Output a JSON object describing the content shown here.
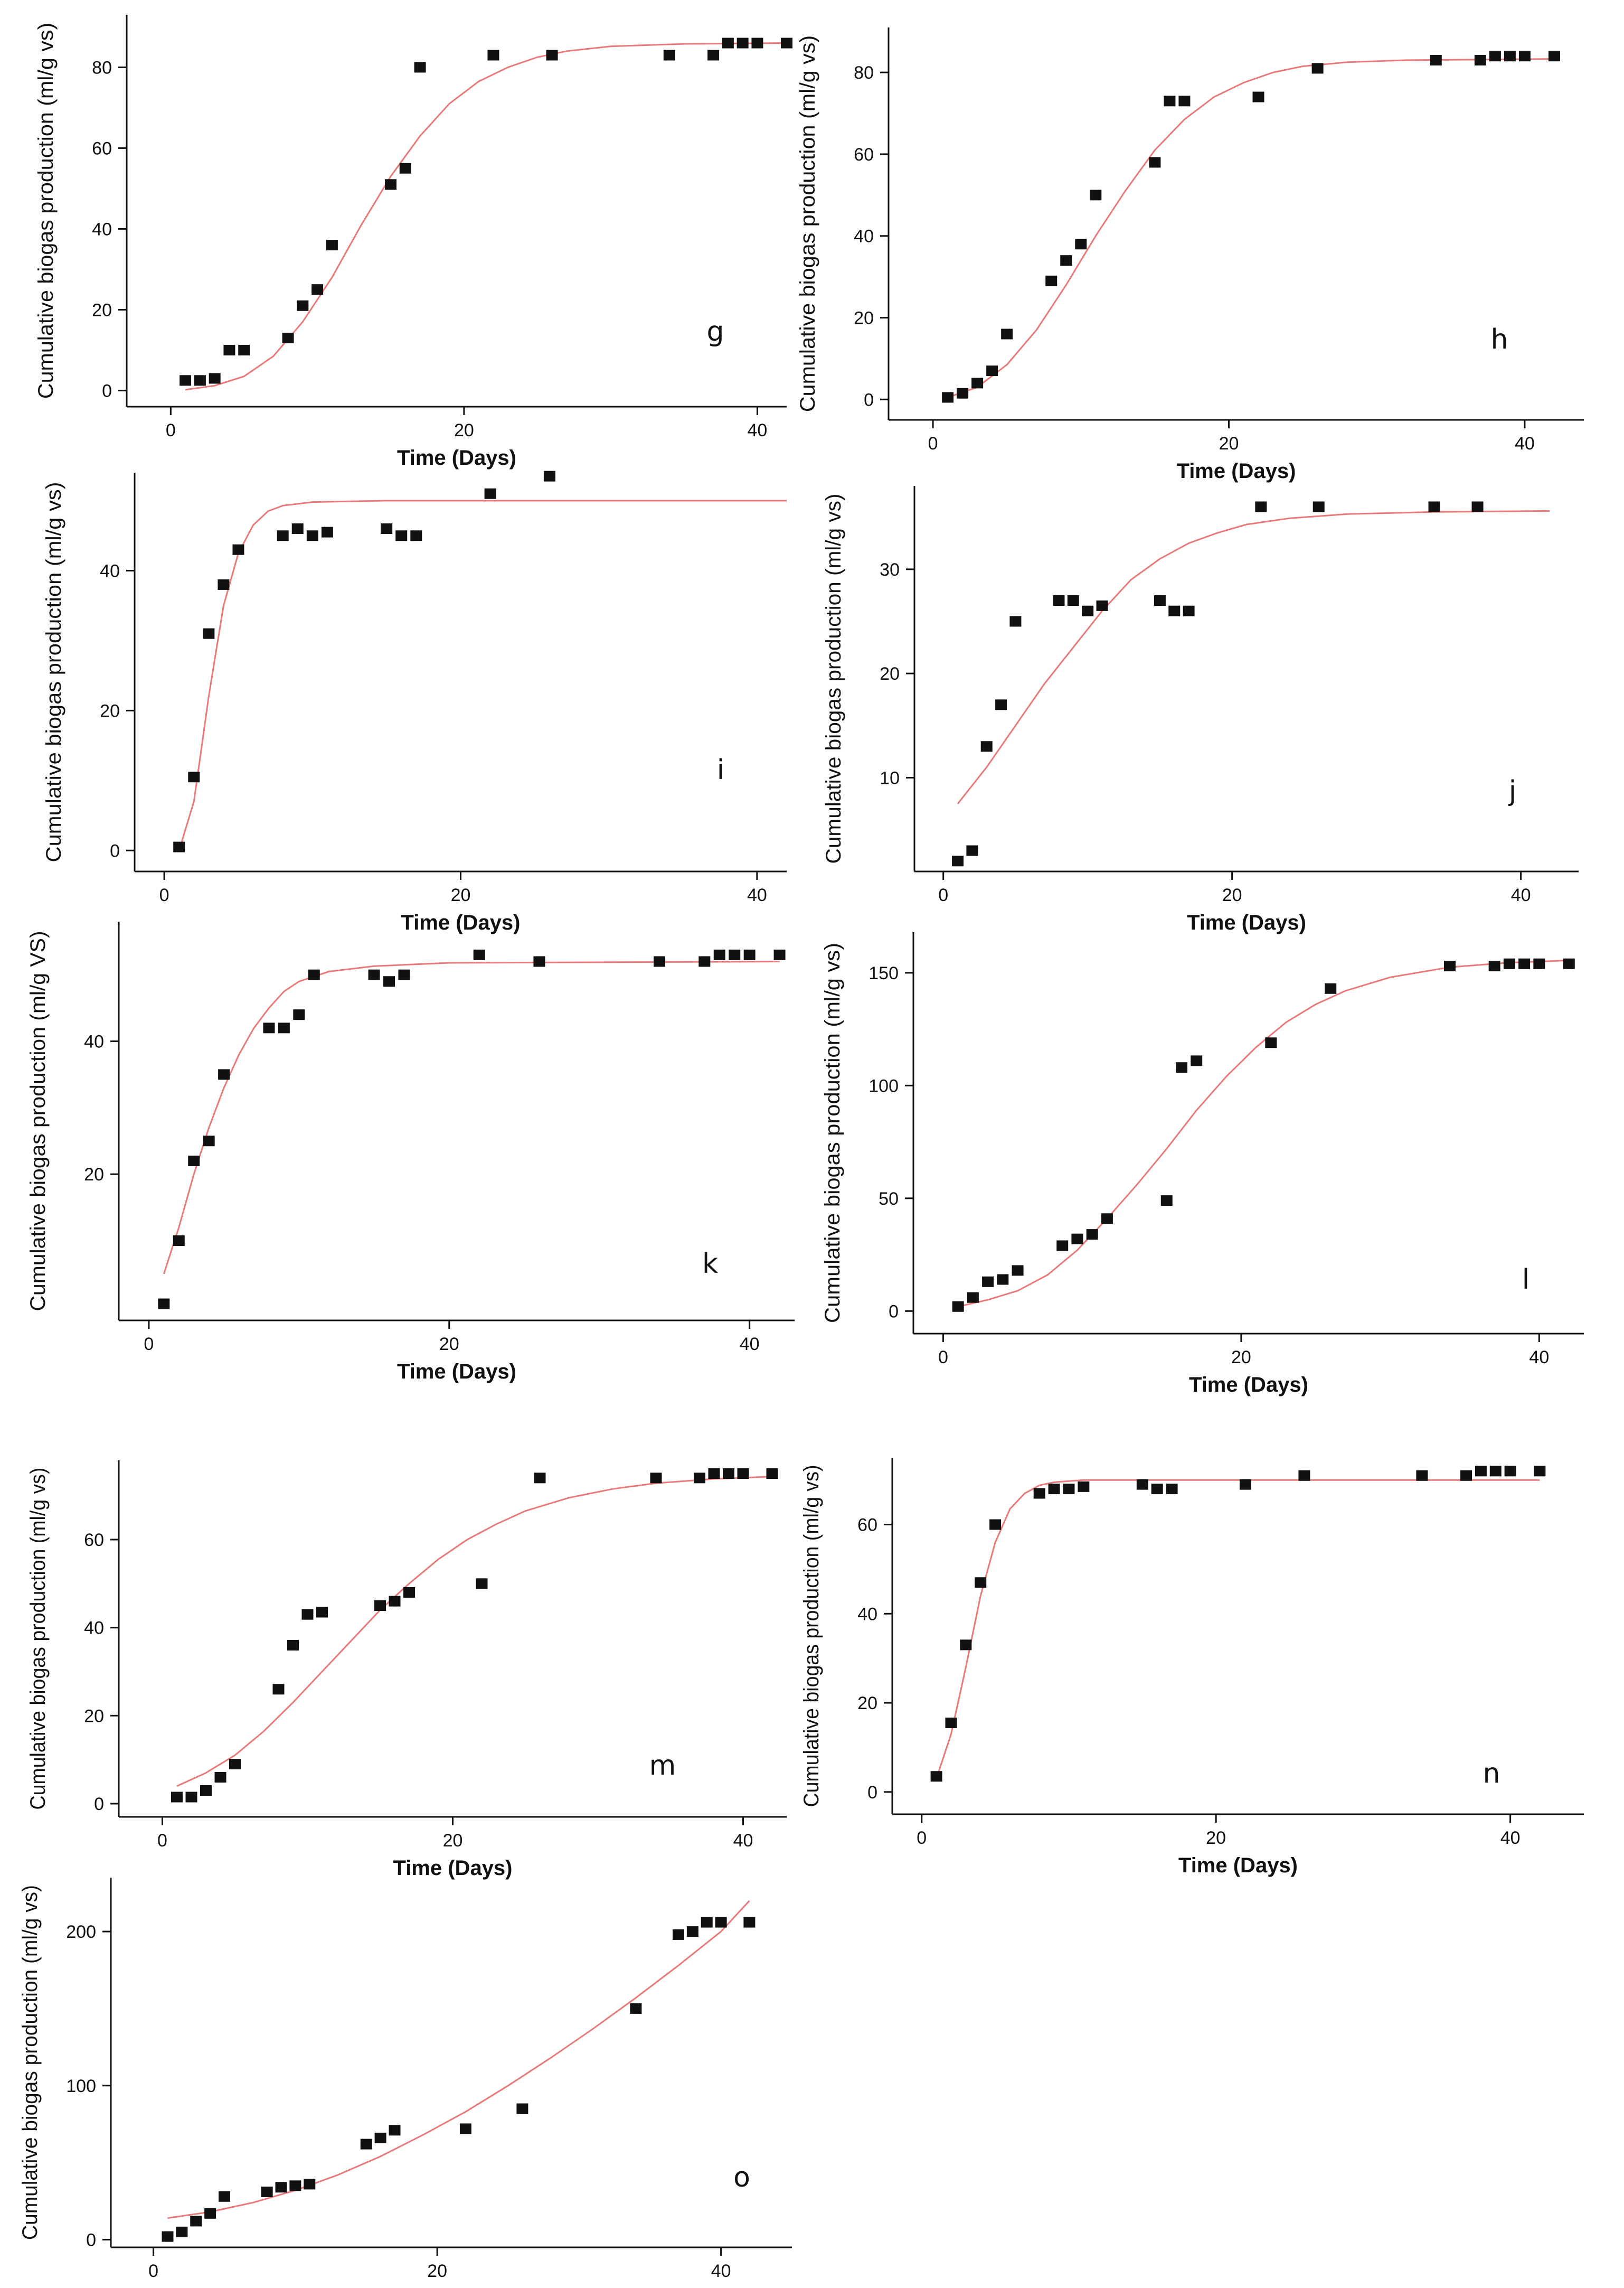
{
  "chart_data": [
    {
      "id": "g",
      "type": "scatter",
      "panel_label": "g",
      "xlabel": "Time (Days)",
      "ylabel": "Cumulative biogas production (ml/g vs)",
      "xlim": [
        -3,
        42
      ],
      "ylim": [
        -4,
        93
      ],
      "xticks": [
        0,
        20,
        40
      ],
      "yticks": [
        0,
        20,
        40,
        60,
        80
      ],
      "points": [
        [
          1,
          2.5
        ],
        [
          2,
          2.5
        ],
        [
          3,
          3
        ],
        [
          4,
          10
        ],
        [
          5,
          10
        ],
        [
          8,
          13
        ],
        [
          9,
          21
        ],
        [
          10,
          25
        ],
        [
          11,
          36
        ],
        [
          15,
          51
        ],
        [
          16,
          55
        ],
        [
          17,
          80
        ],
        [
          22,
          83
        ],
        [
          26,
          83
        ],
        [
          34,
          83
        ],
        [
          37,
          83
        ],
        [
          38,
          86
        ],
        [
          39,
          86
        ],
        [
          40,
          86
        ],
        [
          42,
          86
        ]
      ],
      "fit": [
        [
          1,
          0.2
        ],
        [
          3,
          1.2
        ],
        [
          5,
          3.5
        ],
        [
          7,
          8.5
        ],
        [
          9,
          17
        ],
        [
          11,
          28
        ],
        [
          13,
          41
        ],
        [
          15,
          53
        ],
        [
          17,
          63
        ],
        [
          19,
          71
        ],
        [
          21,
          76.5
        ],
        [
          23,
          80
        ],
        [
          25,
          82.5
        ],
        [
          27,
          84
        ],
        [
          30,
          85.2
        ],
        [
          35,
          85.8
        ],
        [
          42,
          86
        ]
      ]
    },
    {
      "id": "h",
      "type": "scatter",
      "panel_label": "h",
      "xlabel": "Time (Days)",
      "ylabel": "Cumulative biogas production (ml/g vs)",
      "xlim": [
        -3,
        44
      ],
      "ylim": [
        -5,
        91
      ],
      "xticks": [
        0,
        20,
        40
      ],
      "yticks": [
        0,
        20,
        40,
        60,
        80
      ],
      "points": [
        [
          1,
          0.5
        ],
        [
          2,
          1.5
        ],
        [
          3,
          4
        ],
        [
          4,
          7
        ],
        [
          5,
          16
        ],
        [
          8,
          29
        ],
        [
          9,
          34
        ],
        [
          10,
          38
        ],
        [
          11,
          50
        ],
        [
          15,
          58
        ],
        [
          16,
          73
        ],
        [
          17,
          73
        ],
        [
          22,
          74
        ],
        [
          26,
          81
        ],
        [
          34,
          83
        ],
        [
          37,
          83
        ],
        [
          38,
          84
        ],
        [
          39,
          84
        ],
        [
          40,
          84
        ],
        [
          42,
          84
        ]
      ],
      "fit": [
        [
          1,
          0.5
        ],
        [
          3,
          3
        ],
        [
          5,
          8.5
        ],
        [
          7,
          17
        ],
        [
          9,
          28
        ],
        [
          11,
          40
        ],
        [
          13,
          51
        ],
        [
          15,
          61
        ],
        [
          17,
          68.5
        ],
        [
          19,
          74
        ],
        [
          21,
          77.5
        ],
        [
          23,
          80
        ],
        [
          25,
          81.5
        ],
        [
          28,
          82.5
        ],
        [
          32,
          83
        ],
        [
          42,
          83.3
        ]
      ]
    },
    {
      "id": "i",
      "type": "scatter",
      "panel_label": "i",
      "xlabel": "Time (Days)",
      "ylabel": "Cumulative biogas production (ml/g vs)",
      "xlim": [
        -2,
        42
      ],
      "ylim": [
        -3,
        54
      ],
      "xticks": [
        0,
        20,
        40
      ],
      "yticks": [
        0,
        20,
        40
      ],
      "points": [
        [
          1,
          0.5
        ],
        [
          2,
          10.5
        ],
        [
          3,
          31
        ],
        [
          4,
          38
        ],
        [
          5,
          43
        ],
        [
          8,
          45
        ],
        [
          9,
          46
        ],
        [
          10,
          45
        ],
        [
          11,
          45.5
        ],
        [
          15,
          46
        ],
        [
          16,
          45
        ],
        [
          17,
          45
        ],
        [
          22,
          51
        ],
        [
          26,
          53.5
        ]
      ],
      "fit": [
        [
          1,
          0
        ],
        [
          2,
          7
        ],
        [
          3,
          22
        ],
        [
          4,
          35
        ],
        [
          5,
          42.5
        ],
        [
          6,
          46.5
        ],
        [
          7,
          48.5
        ],
        [
          8,
          49.3
        ],
        [
          10,
          49.8
        ],
        [
          15,
          50
        ],
        [
          42,
          50
        ]
      ]
    },
    {
      "id": "j",
      "type": "scatter",
      "panel_label": "j",
      "xlabel": "Time (Days)",
      "ylabel": "Cumulative biogas production (ml/g vs)",
      "xlim": [
        -2,
        44
      ],
      "ylim": [
        1,
        38
      ],
      "xticks": [
        0,
        20,
        40
      ],
      "yticks": [
        10,
        20,
        30
      ],
      "points": [
        [
          1,
          2
        ],
        [
          2,
          3
        ],
        [
          3,
          13
        ],
        [
          4,
          17
        ],
        [
          5,
          25
        ],
        [
          8,
          27
        ],
        [
          9,
          27
        ],
        [
          10,
          26
        ],
        [
          11,
          26.5
        ],
        [
          15,
          27
        ],
        [
          16,
          26
        ],
        [
          17,
          26
        ],
        [
          22,
          36
        ],
        [
          26,
          36
        ],
        [
          34,
          36
        ],
        [
          37,
          36
        ]
      ],
      "fit": [
        [
          1,
          7.5
        ],
        [
          3,
          11
        ],
        [
          5,
          15
        ],
        [
          7,
          19
        ],
        [
          9,
          22.5
        ],
        [
          11,
          26
        ],
        [
          13,
          29
        ],
        [
          15,
          31
        ],
        [
          17,
          32.5
        ],
        [
          19,
          33.5
        ],
        [
          21,
          34.3
        ],
        [
          24,
          34.9
        ],
        [
          28,
          35.3
        ],
        [
          34,
          35.5
        ],
        [
          42,
          35.6
        ]
      ]
    },
    {
      "id": "k",
      "type": "scatter",
      "panel_label": "k",
      "xlabel": "Time (Days)",
      "ylabel": "Cumulative biogas production (ml/g VS)",
      "xlim": [
        -2,
        43
      ],
      "ylim": [
        -2,
        58
      ],
      "xticks": [
        0,
        20,
        40
      ],
      "yticks": [
        20,
        40
      ],
      "points": [
        [
          1,
          0.5
        ],
        [
          2,
          10
        ],
        [
          3,
          22
        ],
        [
          4,
          25
        ],
        [
          5,
          35
        ],
        [
          8,
          42
        ],
        [
          9,
          42
        ],
        [
          10,
          44
        ],
        [
          11,
          50
        ],
        [
          15,
          50
        ],
        [
          16,
          49
        ],
        [
          17,
          50
        ],
        [
          22,
          53
        ],
        [
          26,
          52
        ],
        [
          34,
          52
        ],
        [
          37,
          52
        ],
        [
          38,
          53
        ],
        [
          39,
          53
        ],
        [
          40,
          53
        ],
        [
          42,
          53
        ]
      ],
      "fit": [
        [
          1,
          5
        ],
        [
          2,
          12
        ],
        [
          3,
          20
        ],
        [
          4,
          27
        ],
        [
          5,
          33
        ],
        [
          6,
          38
        ],
        [
          7,
          42
        ],
        [
          8,
          45
        ],
        [
          9,
          47.5
        ],
        [
          10,
          49
        ],
        [
          12,
          50.5
        ],
        [
          15,
          51.3
        ],
        [
          20,
          51.8
        ],
        [
          42,
          52
        ]
      ]
    },
    {
      "id": "l",
      "type": "scatter",
      "panel_label": "l",
      "xlabel": "Time (Days)",
      "ylabel": "Cumulative biogas production (ml/g vs)",
      "xlim": [
        -2,
        43
      ],
      "ylim": [
        -10,
        168
      ],
      "xticks": [
        0,
        20,
        40
      ],
      "yticks": [
        0,
        50,
        100,
        150
      ],
      "points": [
        [
          1,
          2
        ],
        [
          2,
          6
        ],
        [
          3,
          13
        ],
        [
          4,
          14
        ],
        [
          5,
          18
        ],
        [
          8,
          29
        ],
        [
          9,
          32
        ],
        [
          10,
          34
        ],
        [
          11,
          41
        ],
        [
          15,
          49
        ],
        [
          16,
          108
        ],
        [
          17,
          111
        ],
        [
          22,
          119
        ],
        [
          26,
          143
        ],
        [
          34,
          153
        ],
        [
          37,
          153
        ],
        [
          38,
          154
        ],
        [
          39,
          154
        ],
        [
          40,
          154
        ],
        [
          42,
          154
        ]
      ],
      "fit": [
        [
          1,
          2
        ],
        [
          3,
          5
        ],
        [
          5,
          9
        ],
        [
          7,
          16
        ],
        [
          9,
          27
        ],
        [
          11,
          41
        ],
        [
          13,
          56
        ],
        [
          15,
          72
        ],
        [
          17,
          89
        ],
        [
          19,
          104
        ],
        [
          21,
          117
        ],
        [
          23,
          128
        ],
        [
          25,
          136
        ],
        [
          27,
          142
        ],
        [
          30,
          148
        ],
        [
          34,
          152.5
        ],
        [
          38,
          154.5
        ],
        [
          42,
          155.5
        ]
      ]
    },
    {
      "id": "m",
      "type": "scatter",
      "panel_label": "m",
      "xlabel": "Time (Days)",
      "ylabel": "Cumulative biogas production (ml/g vs)",
      "xlim": [
        -3,
        43
      ],
      "ylim": [
        -3,
        78
      ],
      "xticks": [
        0,
        20,
        40
      ],
      "yticks": [
        0,
        20,
        40,
        60
      ],
      "points": [
        [
          1,
          1.5
        ],
        [
          2,
          1.5
        ],
        [
          3,
          3
        ],
        [
          4,
          6
        ],
        [
          5,
          9
        ],
        [
          8,
          26
        ],
        [
          9,
          36
        ],
        [
          10,
          43
        ],
        [
          11,
          43.5
        ],
        [
          15,
          45
        ],
        [
          16,
          46
        ],
        [
          17,
          48
        ],
        [
          22,
          50
        ],
        [
          26,
          74
        ],
        [
          34,
          74
        ],
        [
          37,
          74
        ],
        [
          38,
          75
        ],
        [
          39,
          75
        ],
        [
          40,
          75
        ],
        [
          42,
          75
        ]
      ],
      "fit": [
        [
          1,
          4
        ],
        [
          3,
          7
        ],
        [
          5,
          11
        ],
        [
          7,
          16.5
        ],
        [
          9,
          23
        ],
        [
          11,
          30
        ],
        [
          13,
          37
        ],
        [
          15,
          44
        ],
        [
          17,
          50
        ],
        [
          19,
          55.5
        ],
        [
          21,
          60
        ],
        [
          23,
          63.5
        ],
        [
          25,
          66.5
        ],
        [
          28,
          69.5
        ],
        [
          31,
          71.5
        ],
        [
          34,
          72.8
        ],
        [
          38,
          73.8
        ],
        [
          42,
          74.3
        ]
      ]
    },
    {
      "id": "n",
      "type": "scatter",
      "panel_label": "n",
      "xlabel": "Time (Days)",
      "ylabel": "Cumulative biogas production (ml/g vs)",
      "xlim": [
        -2,
        45
      ],
      "ylim": [
        -5,
        75
      ],
      "xticks": [
        0,
        20,
        40
      ],
      "yticks": [
        0,
        20,
        40,
        60
      ],
      "points": [
        [
          1,
          3.5
        ],
        [
          2,
          15.5
        ],
        [
          3,
          33
        ],
        [
          4,
          47
        ],
        [
          5,
          60
        ],
        [
          8,
          67
        ],
        [
          9,
          68
        ],
        [
          10,
          68
        ],
        [
          11,
          68.5
        ],
        [
          15,
          69
        ],
        [
          16,
          68
        ],
        [
          17,
          68
        ],
        [
          22,
          69
        ],
        [
          26,
          71
        ],
        [
          34,
          71
        ],
        [
          37,
          71
        ],
        [
          38,
          72
        ],
        [
          39,
          72
        ],
        [
          40,
          72
        ],
        [
          42,
          72
        ]
      ],
      "fit": [
        [
          1,
          3
        ],
        [
          2,
          13
        ],
        [
          3,
          28
        ],
        [
          4,
          44
        ],
        [
          5,
          56
        ],
        [
          6,
          63.5
        ],
        [
          7,
          67
        ],
        [
          8,
          68.8
        ],
        [
          9,
          69.5
        ],
        [
          11,
          70
        ],
        [
          20,
          70
        ],
        [
          42,
          70
        ]
      ]
    },
    {
      "id": "o",
      "type": "scatter",
      "panel_label": "o",
      "xlabel": "Time (Days)",
      "ylabel": "Cumulative biogas production (ml/g vs)",
      "xlim": [
        -3,
        45
      ],
      "ylim": [
        -5,
        235
      ],
      "xticks": [
        0,
        20,
        40
      ],
      "yticks": [
        0,
        100,
        200
      ],
      "points": [
        [
          1,
          2
        ],
        [
          2,
          5
        ],
        [
          3,
          12
        ],
        [
          4,
          17
        ],
        [
          5,
          28
        ],
        [
          8,
          31
        ],
        [
          9,
          34
        ],
        [
          10,
          35
        ],
        [
          11,
          36
        ],
        [
          15,
          62
        ],
        [
          16,
          66
        ],
        [
          17,
          71
        ],
        [
          22,
          72
        ],
        [
          26,
          85
        ],
        [
          34,
          150
        ],
        [
          37,
          198
        ],
        [
          38,
          200
        ],
        [
          39,
          206
        ],
        [
          40,
          206
        ],
        [
          42,
          206
        ]
      ],
      "fit": [
        [
          1,
          14
        ],
        [
          4,
          18
        ],
        [
          7,
          24
        ],
        [
          10,
          32
        ],
        [
          13,
          42
        ],
        [
          16,
          54
        ],
        [
          19,
          68
        ],
        [
          22,
          83
        ],
        [
          25,
          100
        ],
        [
          28,
          118
        ],
        [
          31,
          137
        ],
        [
          34,
          157
        ],
        [
          37,
          178
        ],
        [
          40,
          200
        ],
        [
          42,
          220
        ]
      ]
    }
  ]
}
